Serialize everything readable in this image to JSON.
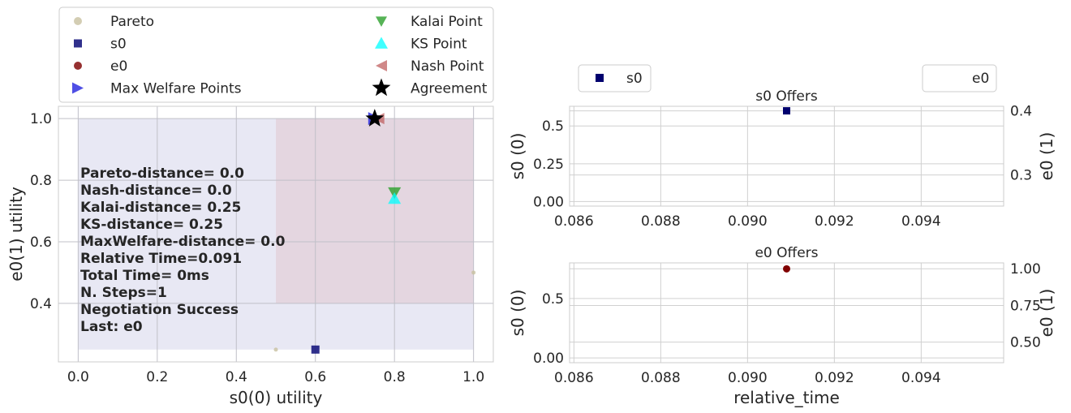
{
  "chart_data": [
    {
      "type": "scatter",
      "title": "",
      "xlabel": "s0(0) utility",
      "ylabel": "e0(1) utility",
      "xlim": [
        -0.05,
        1.05
      ],
      "ylim": [
        0.21,
        1.04
      ],
      "xticks": [
        0.0,
        0.2,
        0.4,
        0.6,
        0.8,
        1.0
      ],
      "yticks": [
        0.4,
        0.6,
        0.8,
        1.0
      ],
      "grid": true,
      "regions": [
        {
          "name": "s0",
          "x": [
            0.0,
            1.0
          ],
          "y": [
            0.25,
            1.0
          ],
          "color": "#e8e8f4"
        },
        {
          "name": "e0",
          "x": [
            0.5,
            1.0
          ],
          "y": [
            0.4,
            1.0
          ],
          "color": "#e4d6e0"
        }
      ],
      "series": [
        {
          "name": "Pareto",
          "marker": "circle",
          "color": "#c8c0a0",
          "points": [
            [
              1.0,
              0.5
            ],
            [
              0.5,
              0.25
            ]
          ]
        },
        {
          "name": "s0",
          "marker": "square",
          "color": "#1a1a80",
          "points": [
            [
              0.6,
              0.25
            ]
          ]
        },
        {
          "name": "e0",
          "marker": "circle",
          "color": "#8b1a1a",
          "points": []
        },
        {
          "name": "Max Welfare Points",
          "marker": "triangle-right",
          "color": "#3030e0",
          "points": [
            [
              0.75,
              1.0
            ]
          ]
        },
        {
          "name": "Kalai Point",
          "marker": "triangle-down",
          "color": "#2ca02c",
          "points": [
            [
              0.8,
              0.76
            ]
          ]
        },
        {
          "name": "KS Point",
          "marker": "triangle-up",
          "color": "#00ffff",
          "points": [
            [
              0.8,
              0.74
            ]
          ]
        },
        {
          "name": "Nash Point",
          "marker": "triangle-left",
          "color": "#c06060",
          "points": [
            [
              0.76,
              1.0
            ]
          ]
        },
        {
          "name": "Agreement",
          "marker": "star",
          "color": "#000000",
          "points": [
            [
              0.75,
              1.0
            ]
          ]
        }
      ],
      "legend": {
        "location": "above",
        "left": [
          "Pareto",
          "s0",
          "e0",
          "Max Welfare Points"
        ],
        "right": [
          "Kalai Point",
          "KS Point",
          "Nash Point",
          "Agreement"
        ]
      },
      "annotation": [
        "Pareto-distance=  0.0",
        "Nash-distance=  0.0",
        "Kalai-distance= 0.25",
        "KS-distance= 0.25",
        "MaxWelfare-distance=  0.0",
        "Relative Time=0.091",
        "Total Time= 0ms",
        "N. Steps=1",
        "Negotiation Success",
        "Last: e0"
      ]
    },
    {
      "type": "scatter",
      "title": "s0 Offers",
      "xlabel": "",
      "ylabel": "s0 (0)",
      "ylabel_right": "e0 (1)",
      "xlim": [
        0.0859,
        0.0959
      ],
      "ylim": [
        -0.03,
        0.63
      ],
      "ylim_right": [
        0.2514,
        0.4071
      ],
      "xticks": [
        0.086,
        0.088,
        0.09,
        0.092,
        0.094
      ],
      "yticks": [
        0.0,
        0.25,
        0.5
      ],
      "yticks_right": [
        0.3,
        0.4
      ],
      "grid": true,
      "series": [
        {
          "name": "s0",
          "marker": "square",
          "color": "#00006e",
          "points": [
            [
              0.0909,
              0.6
            ]
          ]
        }
      ],
      "legend_left": "s0",
      "legend_right": "e0"
    },
    {
      "type": "scatter",
      "title": "e0 Offers",
      "xlabel": "relative_time",
      "ylabel": "s0 (0)",
      "ylabel_right": "e0 (1)",
      "xlim": [
        0.0859,
        0.0959
      ],
      "ylim": [
        -0.04,
        0.8
      ],
      "ylim_right": [
        0.36,
        1.04
      ],
      "xticks": [
        0.086,
        0.088,
        0.09,
        0.092,
        0.094
      ],
      "yticks": [
        0.0,
        0.5
      ],
      "yticks_right": [
        0.5,
        0.75,
        1.0
      ],
      "grid": true,
      "series": [
        {
          "name": "e0",
          "marker": "circle",
          "color": "#800000",
          "points": [
            [
              0.0909,
              0.75
            ]
          ]
        }
      ]
    }
  ]
}
